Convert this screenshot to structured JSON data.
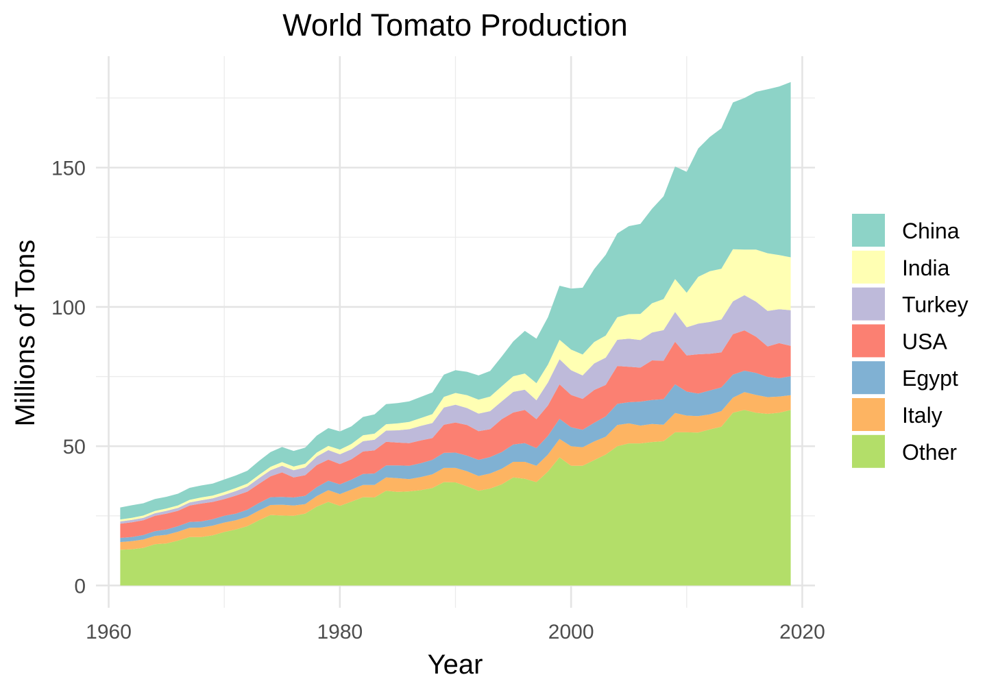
{
  "chart_data": {
    "type": "area",
    "title": "World Tomato Production",
    "xlabel": "Year",
    "ylabel": "Millions of Tons",
    "xlim": [
      1958.9,
      2021.1
    ],
    "ylim": [
      -8,
      190
    ],
    "x_ticks": [
      1960,
      1980,
      2000,
      2020
    ],
    "y_ticks": [
      0,
      50,
      100,
      150
    ],
    "x_minor_ticks": [
      1970,
      1990,
      2010
    ],
    "y_minor_ticks": [
      25,
      75,
      125,
      175
    ],
    "stacked": true,
    "grid": true,
    "legend_position": "right",
    "x": [
      1961,
      1962,
      1963,
      1964,
      1965,
      1966,
      1967,
      1968,
      1969,
      1970,
      1971,
      1972,
      1973,
      1974,
      1975,
      1976,
      1977,
      1978,
      1979,
      1980,
      1981,
      1982,
      1983,
      1984,
      1985,
      1986,
      1987,
      1988,
      1989,
      1990,
      1991,
      1992,
      1993,
      1994,
      1995,
      1996,
      1997,
      1998,
      1999,
      2000,
      2001,
      2002,
      2003,
      2004,
      2005,
      2006,
      2007,
      2008,
      2009,
      2010,
      2011,
      2012,
      2013,
      2014,
      2015,
      2016,
      2017,
      2018,
      2019
    ],
    "series": [
      {
        "name": "China",
        "color": "#8DD3C7",
        "values": [
          4.3,
          4.5,
          4.4,
          4.3,
          4.2,
          4.2,
          4.3,
          4.3,
          4.3,
          4.5,
          4.5,
          4.6,
          5,
          5.3,
          5.4,
          5.6,
          5.8,
          6.1,
          6.4,
          6.5,
          6.3,
          6.6,
          6.9,
          7.2,
          7.3,
          7.4,
          7.6,
          7.8,
          8,
          8.2,
          8.4,
          8.7,
          9.2,
          10.7,
          12.5,
          15.3,
          16,
          17,
          19.4,
          21.9,
          24,
          26.2,
          29,
          30.1,
          31.6,
          32.3,
          33.9,
          36.9,
          40.4,
          43.4,
          46.1,
          48.2,
          50.4,
          52.7,
          54.4,
          56.6,
          58.9,
          60.5,
          62.9
        ]
      },
      {
        "name": "India",
        "color": "#FFFFB3",
        "values": [
          0.7,
          0.75,
          0.8,
          0.8,
          0.85,
          0.9,
          0.95,
          1,
          1,
          1.05,
          1.1,
          1.1,
          1.2,
          1.2,
          1.3,
          1.3,
          1.3,
          1.4,
          1.5,
          1.7,
          1.9,
          2.1,
          2.2,
          2.3,
          2.5,
          2.6,
          2.8,
          3.2,
          3.8,
          4.2,
          4.6,
          5.0,
          5.2,
          5.4,
          5.6,
          5.8,
          6.1,
          6.4,
          7,
          7.4,
          7.5,
          7.7,
          7.9,
          8.1,
          8.8,
          9.4,
          10.5,
          11.1,
          11.8,
          12.4,
          16.8,
          18.2,
          18.2,
          18.7,
          16.4,
          18.7,
          20.7,
          19.4,
          19.0
        ]
      },
      {
        "name": "Turkey",
        "color": "#BEBADA",
        "values": [
          0.8,
          0.85,
          0.9,
          0.95,
          1,
          1.05,
          1.1,
          1.2,
          1.3,
          1.5,
          1.6,
          1.8,
          2,
          2.2,
          2.4,
          2.6,
          2.8,
          3.1,
          3.4,
          3.5,
          3.6,
          3.7,
          3.8,
          4,
          4.4,
          5,
          5.2,
          5.4,
          6.2,
          6.4,
          6.1,
          6.3,
          6.5,
          6.4,
          7.4,
          7.3,
          6.8,
          8.3,
          9,
          8.9,
          8.4,
          9.5,
          9.8,
          9.4,
          10.1,
          9.9,
          10,
          11,
          10.7,
          10.1,
          11,
          11.4,
          11.8,
          11.8,
          12.6,
          12.6,
          12.75,
          12.2,
          12.8
        ]
      },
      {
        "name": "USA",
        "color": "#FB8072",
        "values": [
          5.1,
          5.3,
          5.3,
          5.5,
          5.7,
          5.5,
          5.9,
          6.4,
          6.2,
          6,
          6.5,
          6.5,
          6.9,
          7.5,
          8.8,
          7.2,
          7.4,
          7.9,
          7.6,
          7.3,
          7.3,
          8.1,
          8.3,
          8.5,
          8.2,
          8.1,
          8.2,
          7.8,
          10.1,
          10.8,
          11,
          10.3,
          10,
          11.8,
          11.5,
          11.9,
          10.4,
          10.9,
          12.4,
          11.6,
          11.1,
          11.8,
          11.3,
          13.6,
          12.7,
          12.2,
          14.2,
          13.8,
          15.3,
          13,
          14.1,
          13.2,
          12.6,
          14.5,
          14.5,
          13.0,
          10.9,
          12.6,
          10.9
        ]
      },
      {
        "name": "Egypt",
        "color": "#80B1D3",
        "values": [
          1.5,
          1.5,
          1.6,
          1.7,
          1.9,
          2,
          2.1,
          2.2,
          2.3,
          2.4,
          2.4,
          2.5,
          2.7,
          2.8,
          2.8,
          2.9,
          3,
          3.2,
          3.4,
          3.5,
          3.6,
          3.9,
          4.1,
          4.3,
          4.6,
          4.8,
          5,
          5.2,
          5.4,
          5.5,
          5.6,
          5.8,
          5.9,
          6,
          6.2,
          6.7,
          6.3,
          6.7,
          7.2,
          6.8,
          6.3,
          6.7,
          7.3,
          7.6,
          7.6,
          8.6,
          8.6,
          9.2,
          10.3,
          8.6,
          8.1,
          8.6,
          8.5,
          8.3,
          7.7,
          7.9,
          7.3,
          6.6,
          6.8
        ]
      },
      {
        "name": "Italy",
        "color": "#FDB462",
        "values": [
          2.8,
          2.9,
          3,
          3,
          3.1,
          3.2,
          3.3,
          3.4,
          3.5,
          3.4,
          3.3,
          3.4,
          3.5,
          3.6,
          3.9,
          3.7,
          3.4,
          3.8,
          4.2,
          4.2,
          4.3,
          4.4,
          4.5,
          4.8,
          4.9,
          4.4,
          4.7,
          4.9,
          5.1,
          5.2,
          5.4,
          5.3,
          5.4,
          5.6,
          5.6,
          6.1,
          5.9,
          6.1,
          6.6,
          7,
          6.6,
          6.7,
          6.4,
          7.6,
          7.2,
          6.4,
          6.5,
          5.9,
          6.9,
          6.0,
          5.9,
          5.4,
          5.6,
          5.4,
          6.4,
          6.4,
          6.0,
          5.8,
          5.3
        ]
      },
      {
        "name": "Other",
        "color": "#B3DE69",
        "values": [
          12.8,
          13,
          13.5,
          14.8,
          15.1,
          16.1,
          17.4,
          17.4,
          18,
          19.2,
          20.1,
          21.3,
          23.4,
          25.3,
          25.1,
          25,
          25.8,
          28.3,
          30,
          28.6,
          30.1,
          31.7,
          31.6,
          34,
          33.6,
          33.8,
          34.2,
          35,
          37.1,
          37,
          35.6,
          34,
          34.8,
          36.3,
          38.8,
          38.3,
          37.1,
          40.9,
          46,
          43,
          43,
          45,
          47,
          50,
          51,
          51,
          51.5,
          51.8,
          55,
          55,
          54.9,
          56,
          57,
          62,
          63,
          62,
          61.6,
          62,
          63
        ]
      }
    ]
  }
}
